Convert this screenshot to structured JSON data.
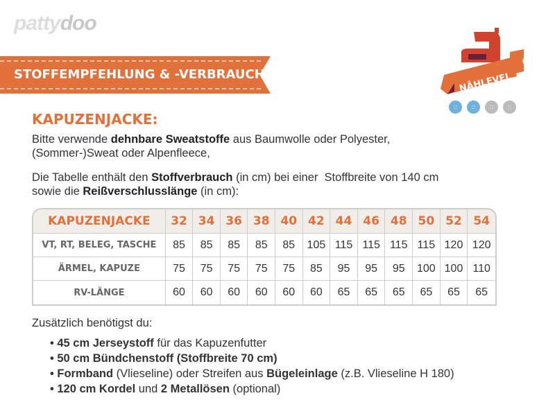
{
  "logo": {
    "part1": "patty",
    "part2": "doo"
  },
  "banner": {
    "title": "STOFFEMPFEHLUNG & -VERBRAUCH"
  },
  "badge": {
    "label": "NÄHLEVEL",
    "level": 2,
    "max": 4,
    "colors": {
      "on": "#6fb0dc",
      "off": "#bbbbbb"
    }
  },
  "heading": "KAPUZENJACKE:",
  "intro": {
    "l1a": "Bitte verwende ",
    "l1b": "dehnbare Sweatstoffe",
    "l1c": " aus Baumwolle oder Polyester,",
    "l2": "(Sommer-)Sweat oder Alpenfleece,",
    "l3a": "Die Tabelle enthält den ",
    "l3b": "Stoffverbrauch",
    "l3c": " (in cm) bei einer  Stoffbreite von 140 cm",
    "l4a": "sowie die ",
    "l4b": "Reißverschlusslänge",
    "l4c": " (in cm):"
  },
  "table": {
    "header": "KAPUZENJACKE",
    "sizes": [
      "32",
      "34",
      "36",
      "38",
      "40",
      "42",
      "44",
      "46",
      "48",
      "50",
      "52",
      "54"
    ],
    "rows": [
      {
        "label": "VT, RT, BELEG, TASCHE",
        "values": [
          "85",
          "85",
          "85",
          "85",
          "85",
          "105",
          "115",
          "115",
          "115",
          "115",
          "120",
          "120"
        ]
      },
      {
        "label": "ÄRMEL, KAPUZE",
        "values": [
          "75",
          "75",
          "75",
          "75",
          "75",
          "85",
          "95",
          "95",
          "95",
          "100",
          "100",
          "110"
        ]
      },
      {
        "label": "RV-LÄNGE",
        "values": [
          "60",
          "60",
          "60",
          "60",
          "60",
          "60",
          "65",
          "65",
          "65",
          "65",
          "65",
          "65"
        ]
      }
    ]
  },
  "extra": {
    "title": "Zusätzlich benötigst du:",
    "b1a": "45 cm Jerseystoff",
    "b1b": " für das Kapuzenfutter",
    "b2a": "50 cm Bündchenstoff (Stoffbreite 70 cm)",
    "b3a": "Formband",
    "b3b": " (Vlieseline) oder Streifen aus ",
    "b3c": "Bügeleinlage",
    "b3d": " (z.B. Vlieseline H 180)",
    "b4a": "120 cm Kordel",
    "b4b": " und ",
    "b4c": "2 Metallösen",
    "b4d": " (optional)"
  },
  "accent": "#e2703a"
}
